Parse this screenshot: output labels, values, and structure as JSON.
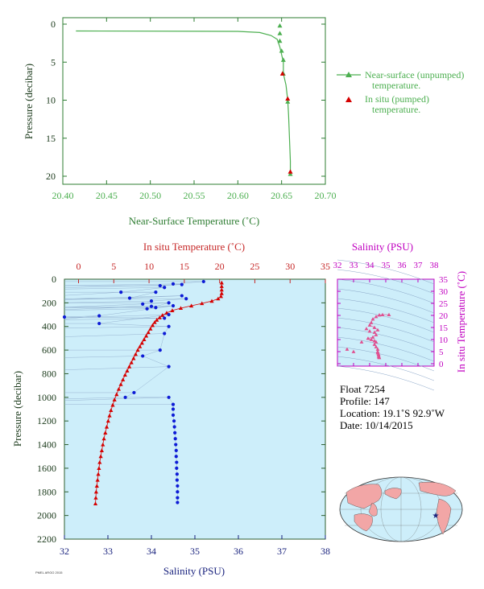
{
  "colors": {
    "green": "#4caf50",
    "red": "#d50000",
    "blue": "#0d1bd6",
    "magenta": "#cc00cc",
    "plot_bg": "#cdeefa",
    "world_land": "#f2a6a6"
  },
  "top_chart": {
    "xlabel": "Near-Surface Temperature (˚C)",
    "ylabel": "Pressure (decibar)",
    "xlim": [
      20.4,
      20.7
    ],
    "ylim": [
      0,
      22
    ],
    "xticks": [
      "20.40",
      "20.45",
      "20.50",
      "20.55",
      "20.60",
      "20.65",
      "20.70"
    ],
    "yticks": [
      "0",
      "5",
      "10",
      "15",
      "20"
    ],
    "legend": {
      "unpumped_line1": "Near-surface (unpumped)",
      "unpumped_line2": "temperature.",
      "pumped_line1": "In situ (pumped)",
      "pumped_line2": "temperature."
    }
  },
  "main_chart": {
    "top_xlabel": "In situ Temperature (˚C)",
    "bottom_xlabel": "Salinity (PSU)",
    "ylabel": "Pressure (decibar)",
    "temp_ticks": [
      "0",
      "5",
      "10",
      "15",
      "20",
      "25",
      "30",
      "35"
    ],
    "sal_ticks": [
      "32",
      "33",
      "34",
      "35",
      "36",
      "37",
      "38"
    ],
    "pressure_ticks": [
      "0",
      "200",
      "400",
      "600",
      "800",
      "1000",
      "1200",
      "1400",
      "1600",
      "1800",
      "2000",
      "2200"
    ]
  },
  "ts_chart": {
    "top_label": "Salinity (PSU)",
    "right_label": "In situ Temperature (˚C)",
    "sal_ticks": [
      "32",
      "33",
      "34",
      "35",
      "36",
      "37",
      "38"
    ],
    "temp_ticks": [
      "0",
      "5",
      "10",
      "15",
      "20",
      "25",
      "30",
      "35"
    ]
  },
  "info": {
    "float": "Float  7254",
    "profile": "Profile:  147",
    "location": "Location:  19.1˚S  92.9˚W",
    "date": "Date:  10/14/2015"
  },
  "footer_text": "PMEL ARGO 2015",
  "chart_data": [
    {
      "type": "line",
      "name_hint": "near-surface temperature profile",
      "xlabel": "Near-Surface Temperature (˚C)",
      "ylabel": "Pressure (decibar)",
      "xlim": [
        20.4,
        20.7
      ],
      "ylim": [
        22,
        0
      ],
      "series": [
        {
          "name": "Near-surface (unpumped) temperature.",
          "marker": "triangle",
          "points": [
            [
              20.415,
              0.9
            ],
            [
              20.6,
              0.95
            ],
            [
              20.625,
              1.1
            ],
            [
              20.638,
              1.5
            ],
            [
              20.645,
              2.0
            ],
            [
              20.648,
              3.0
            ],
            [
              20.65,
              4.0
            ],
            [
              20.652,
              5.0
            ],
            [
              20.652,
              6.5
            ],
            [
              20.655,
              8.0
            ],
            [
              20.657,
              10.0
            ],
            [
              20.658,
              12.0
            ],
            [
              20.659,
              15.0
            ],
            [
              20.66,
              18.0
            ],
            [
              20.66,
              19.8
            ]
          ],
          "marked_points": [
            [
              20.648,
              0.2
            ],
            [
              20.648,
              1.2
            ],
            [
              20.648,
              2.2
            ],
            [
              20.65,
              3.5
            ],
            [
              20.652,
              4.7
            ],
            [
              20.652,
              6.5
            ],
            [
              20.657,
              10.2
            ],
            [
              20.66,
              19.7
            ]
          ]
        },
        {
          "name": "In situ (pumped) temperature.",
          "marker": "triangle",
          "points": [
            [
              20.651,
              6.5
            ],
            [
              20.657,
              9.8
            ],
            [
              20.66,
              19.4
            ]
          ]
        }
      ]
    },
    {
      "type": "scatter",
      "name_hint": "depth profile",
      "ylabel": "Pressure (decibar)",
      "ylim": [
        2200,
        0
      ],
      "series": [
        {
          "name": "In situ Temperature",
          "xlabel": "In situ Temperature (˚C)",
          "xlim": [
            -2,
            35
          ],
          "marker": "triangle",
          "points": [
            [
              20.3,
              30
            ],
            [
              20.3,
              60
            ],
            [
              20.3,
              90
            ],
            [
              20.3,
              120
            ],
            [
              20.2,
              145
            ],
            [
              19.8,
              165
            ],
            [
              18.9,
              185
            ],
            [
              17.5,
              205
            ],
            [
              16.0,
              225
            ],
            [
              14.5,
              245
            ],
            [
              13.3,
              265
            ],
            [
              12.5,
              285
            ],
            [
              11.9,
              305
            ],
            [
              11.5,
              325
            ],
            [
              11.1,
              345
            ],
            [
              10.8,
              365
            ],
            [
              10.5,
              390
            ],
            [
              10.2,
              420
            ],
            [
              9.9,
              450
            ],
            [
              9.6,
              480
            ],
            [
              9.3,
              510
            ],
            [
              9.0,
              540
            ],
            [
              8.7,
              570
            ],
            [
              8.4,
              600
            ],
            [
              8.1,
              635
            ],
            [
              7.8,
              670
            ],
            [
              7.5,
              705
            ],
            [
              7.2,
              740
            ],
            [
              6.9,
              775
            ],
            [
              6.6,
              810
            ],
            [
              6.3,
              850
            ],
            [
              6.0,
              890
            ],
            [
              5.7,
              930
            ],
            [
              5.4,
              975
            ],
            [
              5.1,
              1020
            ],
            [
              4.85,
              1065
            ],
            [
              4.6,
              1110
            ],
            [
              4.4,
              1155
            ],
            [
              4.2,
              1200
            ],
            [
              4.0,
              1250
            ],
            [
              3.8,
              1300
            ],
            [
              3.6,
              1350
            ],
            [
              3.45,
              1400
            ],
            [
              3.3,
              1450
            ],
            [
              3.15,
              1500
            ],
            [
              3.0,
              1550
            ],
            [
              2.9,
              1600
            ],
            [
              2.8,
              1650
            ],
            [
              2.7,
              1700
            ],
            [
              2.6,
              1750
            ],
            [
              2.5,
              1800
            ],
            [
              2.45,
              1850
            ],
            [
              2.4,
              1900
            ]
          ]
        },
        {
          "name": "Salinity",
          "xlabel": "Salinity (PSU)",
          "xlim": [
            32,
            38
          ],
          "marker": "circle",
          "points": [
            [
              35.2,
              20
            ],
            [
              34.5,
              40
            ],
            [
              34.7,
              45
            ],
            [
              34.2,
              55
            ],
            [
              34.3,
              70
            ],
            [
              33.3,
              110
            ],
            [
              34.1,
              110
            ],
            [
              33.5,
              160
            ],
            [
              34.7,
              140
            ],
            [
              34.8,
              165
            ],
            [
              34.0,
              185
            ],
            [
              33.8,
              210
            ],
            [
              34.4,
              200
            ],
            [
              33.9,
              250
            ],
            [
              34.0,
              230
            ],
            [
              34.1,
              240
            ],
            [
              34.5,
              225
            ],
            [
              32.8,
              310
            ],
            [
              32.0,
              320
            ],
            [
              34.3,
              330
            ],
            [
              34.4,
              300
            ],
            [
              32.8,
              375
            ],
            [
              34.4,
              400
            ],
            [
              34.3,
              460
            ],
            [
              34.2,
              600
            ],
            [
              33.8,
              650
            ],
            [
              34.4,
              740
            ],
            [
              33.6,
              960
            ],
            [
              33.4,
              1000
            ],
            [
              34.4,
              1000
            ],
            [
              34.5,
              1060
            ],
            [
              34.5,
              1100
            ],
            [
              34.5,
              1150
            ],
            [
              34.52,
              1200
            ],
            [
              34.53,
              1250
            ],
            [
              34.54,
              1300
            ],
            [
              34.55,
              1350
            ],
            [
              34.56,
              1400
            ],
            [
              34.57,
              1450
            ],
            [
              34.57,
              1500
            ],
            [
              34.58,
              1550
            ],
            [
              34.58,
              1600
            ],
            [
              34.59,
              1650
            ],
            [
              34.59,
              1700
            ],
            [
              34.6,
              1750
            ],
            [
              34.6,
              1800
            ],
            [
              34.6,
              1850
            ],
            [
              34.6,
              1890
            ]
          ]
        }
      ]
    },
    {
      "type": "scatter",
      "name_hint": "temperature-salinity diagram",
      "xlabel": "Salinity (PSU)",
      "ylabel": "In situ Temperature (˚C)",
      "xlim": [
        32,
        38
      ],
      "ylim": [
        -1,
        35
      ],
      "series": [
        {
          "name": "T-S points",
          "marker": "triangle",
          "points": [
            [
              35.2,
              20.3
            ],
            [
              34.8,
              20.3
            ],
            [
              34.6,
              20.2
            ],
            [
              34.4,
              19.5
            ],
            [
              34.2,
              18.5
            ],
            [
              34.1,
              17.0
            ],
            [
              34.0,
              16.0
            ],
            [
              34.3,
              15.0
            ],
            [
              34.5,
              14.0
            ],
            [
              34.3,
              13.0
            ],
            [
              34.4,
              12.0
            ],
            [
              34.2,
              11.0
            ],
            [
              33.9,
              10.5
            ],
            [
              34.1,
              10.0
            ],
            [
              34.3,
              9.5
            ],
            [
              34.4,
              9.0
            ],
            [
              34.3,
              8.0
            ],
            [
              34.4,
              7.0
            ],
            [
              34.5,
              6.0
            ],
            [
              34.5,
              5.0
            ],
            [
              34.5,
              4.5
            ],
            [
              34.55,
              4.0
            ],
            [
              34.56,
              3.5
            ],
            [
              34.57,
              3.0
            ],
            [
              34.58,
              2.7
            ],
            [
              34.6,
              2.5
            ],
            [
              32.6,
              6.0
            ],
            [
              33.5,
              9.0
            ],
            [
              33.0,
              5.0
            ],
            [
              34.0,
              13.5
            ],
            [
              33.8,
              14.5
            ]
          ]
        }
      ]
    }
  ]
}
